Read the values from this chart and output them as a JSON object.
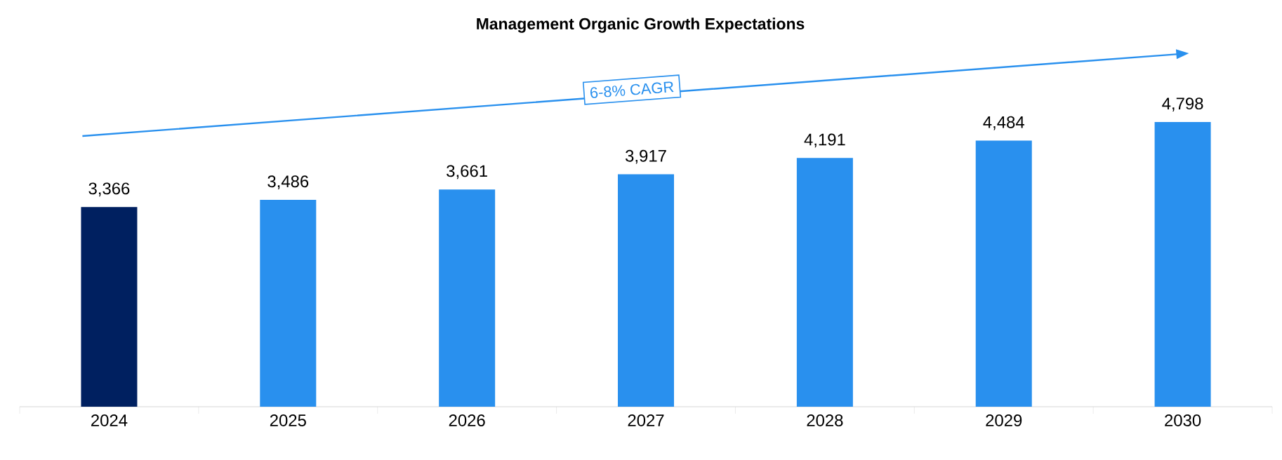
{
  "chart_data": {
    "type": "bar",
    "title": "**Management Organic Growth Expectations**",
    "categories": [
      "2024",
      "2025",
      "2026",
      "2027",
      "2028",
      "2029",
      "2030"
    ],
    "values": [
      3366,
      3486,
      3661,
      3917,
      4191,
      4484,
      4798
    ],
    "colors": [
      "#002060",
      "#2990ee",
      "#2990ee",
      "#2990ee",
      "#2990ee",
      "#2990ee",
      "#2990ee"
    ],
    "value_labels": [
      "3,366",
      "3,486",
      "3,661",
      "3,917",
      "4,191",
      "4,484",
      "4,798"
    ],
    "annotations": [
      "6-8% CAGR"
    ]
  }
}
